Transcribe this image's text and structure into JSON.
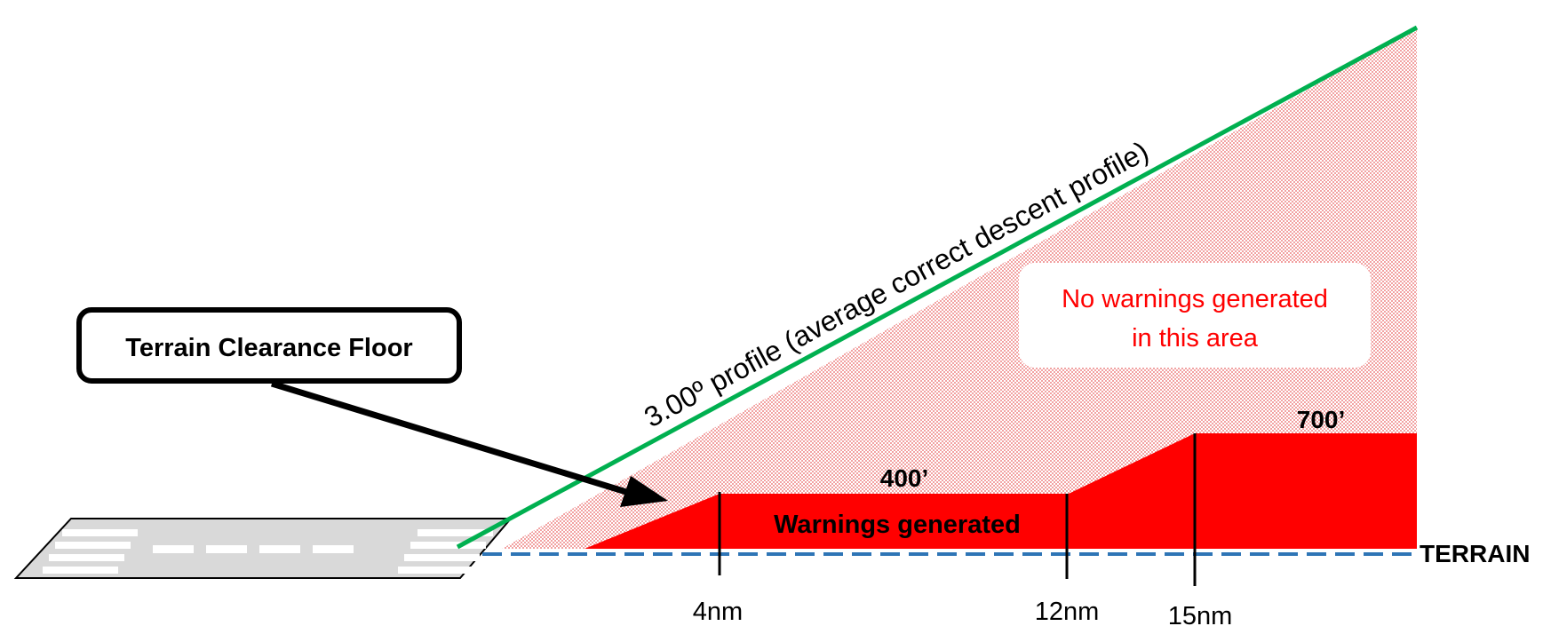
{
  "profile_label": "3.00º profile (average correct descent profile)",
  "callout_label": "Terrain Clearance Floor",
  "no_warnings": {
    "line1": "No warnings generated",
    "line2": "in this area"
  },
  "warnings_label": "Warnings generated",
  "altitude_labels": {
    "low": "400’",
    "high": "700’"
  },
  "terrain_label": "TERRAIN",
  "distance_marks": [
    "4nm",
    "12nm",
    "15nm"
  ],
  "colors": {
    "profile_line": "#00b050",
    "warning_fill": "#ff0000",
    "no_warning_fill": "#f4b6b6",
    "terrain_line": "#2e75b6",
    "no_warning_text": "#ff0000",
    "runway_fill": "#d9d9d9"
  }
}
